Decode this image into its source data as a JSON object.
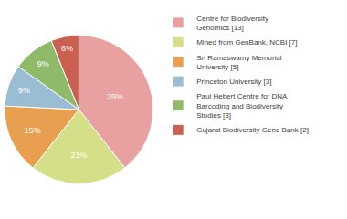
{
  "chart_data": {
    "type": "pie",
    "categories": [
      "Centre for Biodiversity\nGenomics [13]",
      "Mined from GenBank, NCBI [7]",
      "Sri Ramaswamy Memorial\nUniversity [5]",
      "Princeton University [3]",
      "Paul Hebert Centre for DNA\nBarcoding and Biodiversity\nStudies [3]",
      "Gujarat Biodiversity Gene Bank [2]"
    ],
    "values": [
      39,
      21,
      15,
      9,
      9,
      6
    ],
    "value_labels": [
      "39%",
      "21%",
      "15%",
      "9%",
      "9%",
      "6%"
    ],
    "colors": [
      "#e8a0a0",
      "#d4df88",
      "#e8a050",
      "#9bbdd4",
      "#8eba6a",
      "#cc6050"
    ],
    "data_labels": true,
    "legend": "upper right"
  }
}
